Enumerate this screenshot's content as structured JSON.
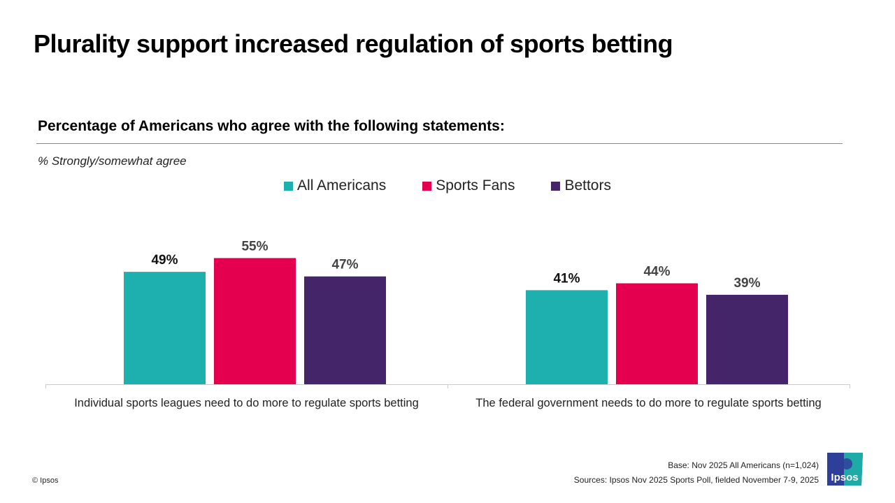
{
  "title": "Plurality support increased regulation of sports betting",
  "chart_data": {
    "type": "bar",
    "title": "Percentage of Americans who agree with the following statements:",
    "note": "% Strongly/somewhat agree",
    "categories": [
      "Individual sports leagues need to do more to regulate sports betting",
      "The federal government needs to do more to regulate sports betting"
    ],
    "series": [
      {
        "name": "All Americans",
        "color": "#1eb0af",
        "label_color": "#111111",
        "values": [
          49,
          41
        ]
      },
      {
        "name": "Sports Fans",
        "color": "#e4004f",
        "label_color": "#444444",
        "values": [
          55,
          44
        ]
      },
      {
        "name": "Bettors",
        "color": "#45256a",
        "label_color": "#444444",
        "values": [
          47,
          39
        ]
      }
    ],
    "value_suffix": "%",
    "ylim": [
      0,
      60
    ],
    "grid": false,
    "legend_placement": "top"
  },
  "footer": {
    "base": "Base: Nov 2025 All Americans (n=1,024)",
    "sources": "Sources: Ipsos Nov 2025 Sports Poll, fielded November 7-9, 2025",
    "copyright": "© Ipsos",
    "logo_text": "Ipsos"
  }
}
